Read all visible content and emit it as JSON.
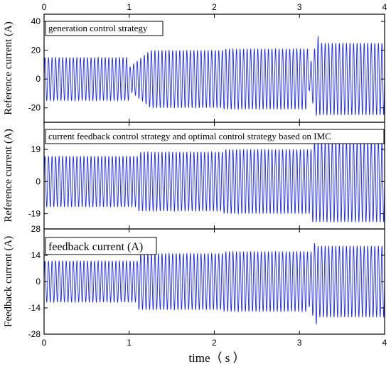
{
  "chart_data": {
    "type": "line",
    "x_axis": {
      "label": "time（ s ）",
      "range": [
        0,
        4
      ],
      "ticks": [
        0,
        1,
        2,
        3,
        4
      ],
      "tick_labels": [
        "0",
        "1",
        "2",
        "3",
        "4"
      ],
      "top_tick_labels": [
        "0",
        "1",
        "2",
        "3",
        "4"
      ]
    },
    "grid": false,
    "line_color": "#1f2bd6",
    "panels": [
      {
        "ylabel": "Reference current (A)",
        "ylim": [
          -30,
          45
        ],
        "yticks": [
          -20,
          0,
          20,
          40
        ],
        "ytick_labels": [
          "-20",
          "0",
          "20",
          "40"
        ],
        "annotation": "generation control strategy",
        "signal": {
          "kind": "sinusoid",
          "frequency_hz": 24,
          "segments": [
            {
              "t_start": 0.0,
              "t_end": 1.0,
              "amplitude": 15
            },
            {
              "t_start": 1.0,
              "t_end": 1.25,
              "amplitude_start": 8,
              "amplitude_end": 20
            },
            {
              "t_start": 1.25,
              "t_end": 2.1,
              "amplitude": 20
            },
            {
              "t_start": 2.1,
              "t_end": 3.1,
              "amplitude": 21
            },
            {
              "t_start": 3.1,
              "t_end": 3.22,
              "amplitude_start": 5,
              "amplitude_end": 30
            },
            {
              "t_start": 3.22,
              "t_end": 4.0,
              "amplitude": 25
            }
          ]
        }
      },
      {
        "ylabel": "Reference current (A)",
        "ylim": [
          -28,
          35
        ],
        "yticks": [
          -19,
          0,
          19
        ],
        "ytick_labels": [
          "-19",
          "0",
          "19"
        ],
        "annotation": "current feedback control strategy and optimal control strategy based on IMC",
        "signal": {
          "kind": "sinusoid",
          "frequency_hz": 24,
          "segments": [
            {
              "t_start": 0.0,
              "t_end": 1.1,
              "amplitude": 15
            },
            {
              "t_start": 1.1,
              "t_end": 2.1,
              "amplitude": 17.5
            },
            {
              "t_start": 2.1,
              "t_end": 3.15,
              "amplitude": 19
            },
            {
              "t_start": 3.15,
              "t_end": 4.0,
              "amplitude": 24
            }
          ]
        }
      },
      {
        "ylabel": "Feedback current (A)",
        "ylim": [
          -28,
          28
        ],
        "yticks": [
          -28,
          -14,
          0,
          14,
          28
        ],
        "ytick_labels": [
          "-28",
          "-14",
          "0",
          "14",
          "28"
        ],
        "annotation": "feedback current (A)",
        "signal": {
          "kind": "sinusoid",
          "frequency_hz": 24,
          "segments": [
            {
              "t_start": 0.0,
              "t_end": 1.1,
              "amplitude": 11
            },
            {
              "t_start": 1.1,
              "t_end": 2.1,
              "amplitude": 15
            },
            {
              "t_start": 2.1,
              "t_end": 3.1,
              "amplitude": 16
            },
            {
              "t_start": 3.1,
              "t_end": 3.2,
              "amplitude_start": 12,
              "amplitude_end": 23
            },
            {
              "t_start": 3.2,
              "t_end": 4.0,
              "amplitude": 19
            }
          ]
        }
      }
    ]
  }
}
